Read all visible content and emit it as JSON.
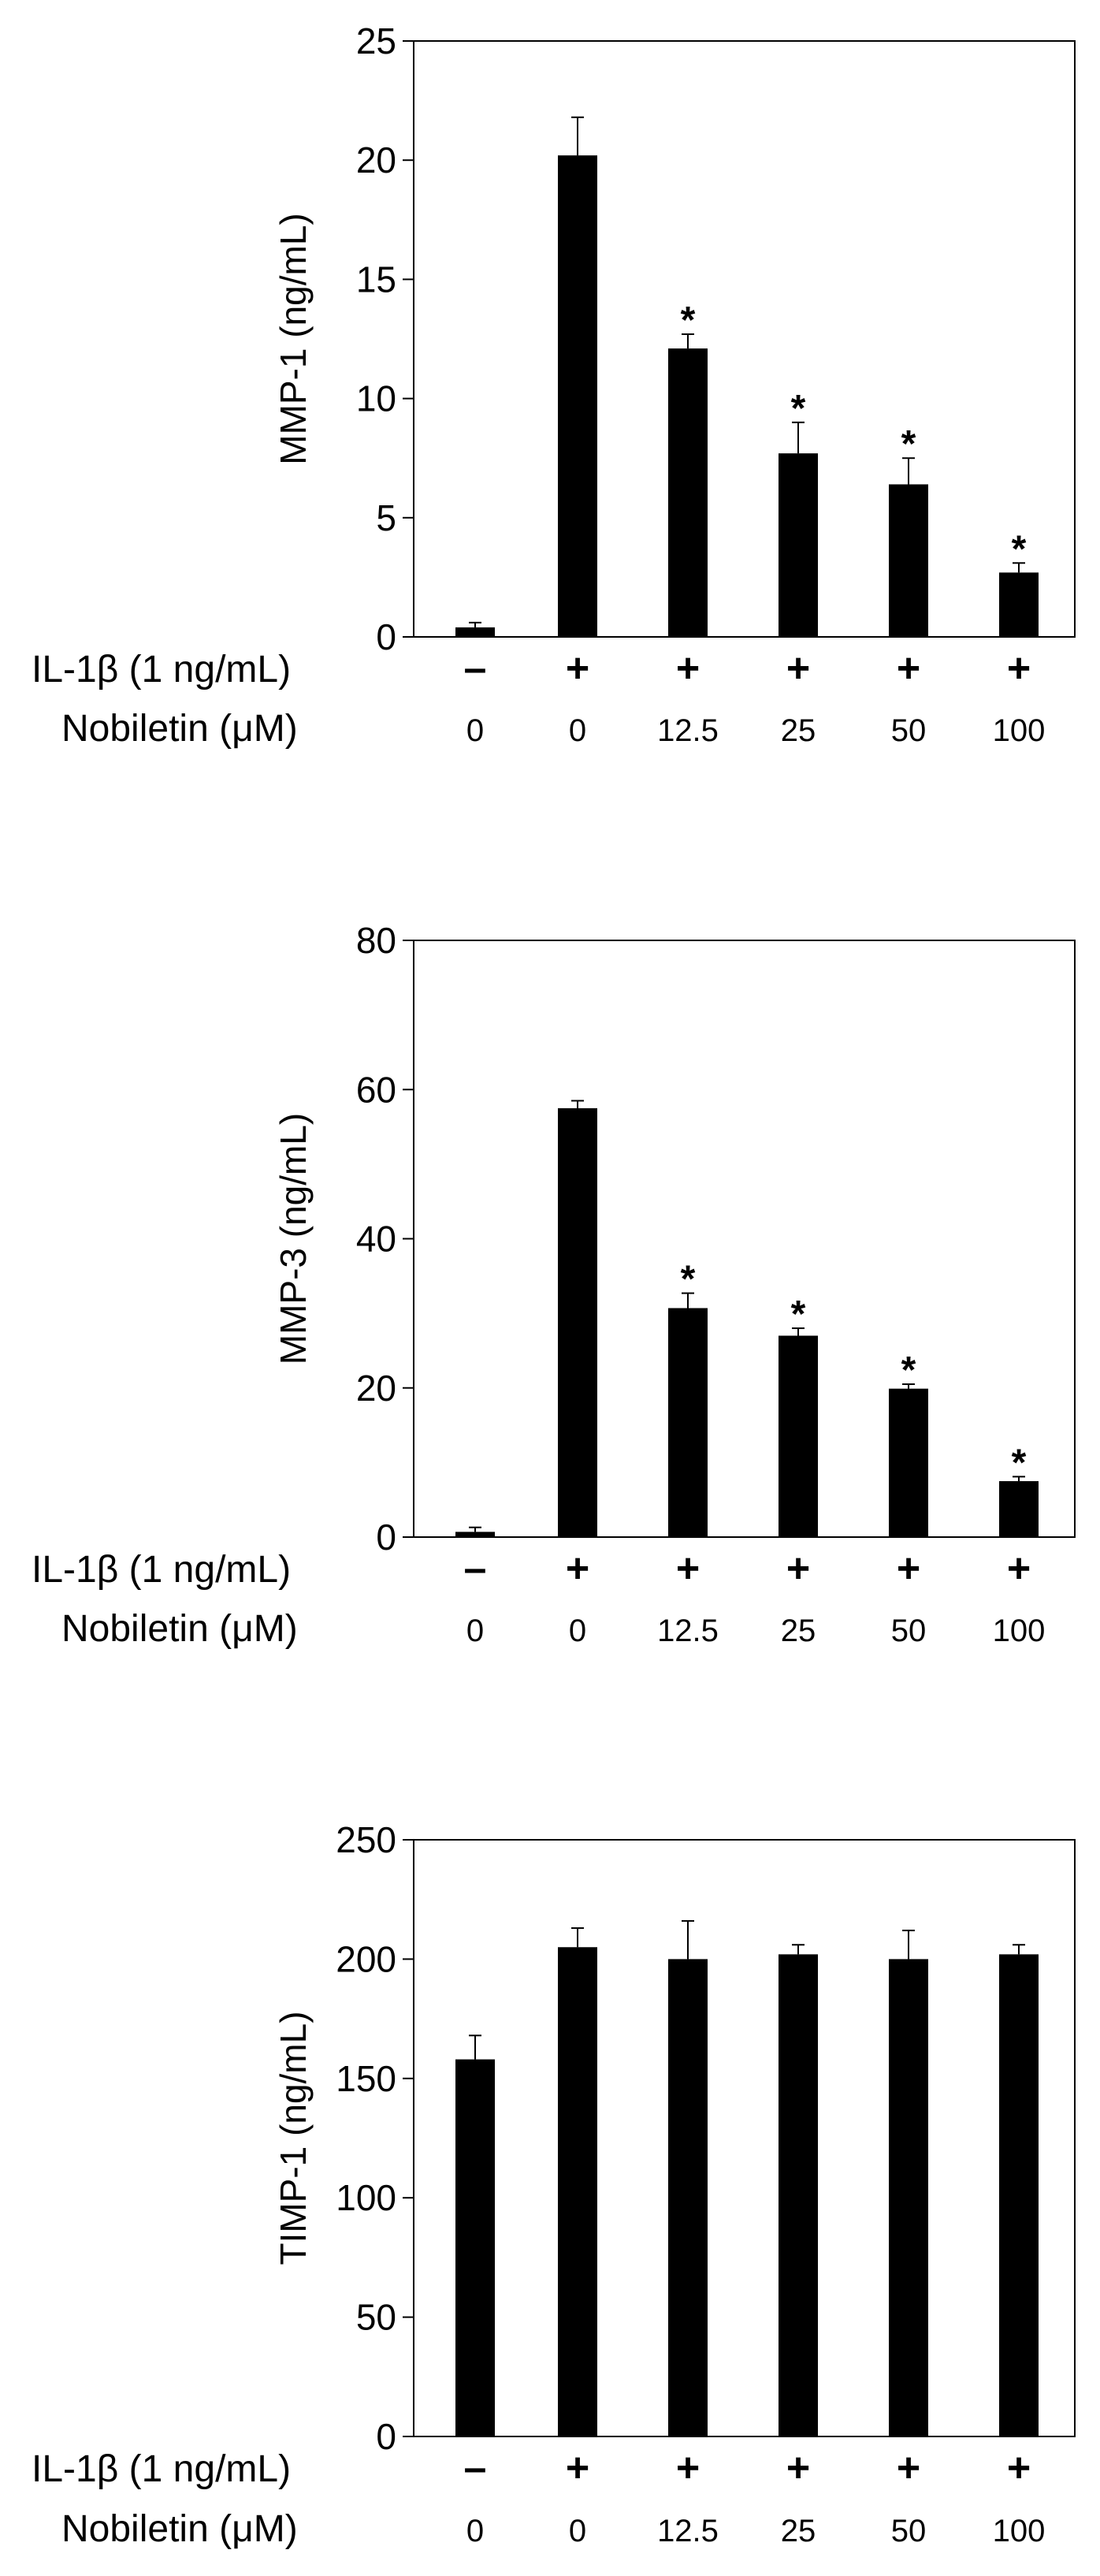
{
  "row_labels": {
    "il1b": "IL-1β (1 ng/mL)",
    "nobiletin": "Nobiletin (μM)"
  },
  "il1b_values": [
    "–",
    "+",
    "+",
    "+",
    "+",
    "+"
  ],
  "nobiletin_values": [
    "0",
    "0",
    "12.5",
    "25",
    "50",
    "100"
  ],
  "colors": {
    "bar": "#000000",
    "axis": "#000000",
    "background": "#ffffff"
  },
  "chart_data": [
    {
      "type": "bar",
      "ylabel": "MMP-1 (ng/mL)",
      "ylim": [
        0,
        25
      ],
      "yticks": [
        0,
        5,
        10,
        15,
        20,
        25
      ],
      "categories": [
        "0",
        "0",
        "12.5",
        "25",
        "50",
        "100"
      ],
      "values": [
        0.4,
        20.2,
        12.1,
        7.7,
        6.4,
        2.7
      ],
      "errors": [
        0.2,
        1.6,
        0.6,
        1.3,
        1.1,
        0.4
      ],
      "significance": [
        "",
        "",
        "*",
        "*",
        "*",
        "*"
      ],
      "grid": false
    },
    {
      "type": "bar",
      "ylabel": "MMP-3 (ng/mL)",
      "ylim": [
        0,
        80
      ],
      "yticks": [
        0,
        20,
        40,
        60,
        80
      ],
      "categories": [
        "0",
        "0",
        "12.5",
        "25",
        "50",
        "100"
      ],
      "values": [
        0.7,
        57.5,
        30.7,
        27.0,
        19.9,
        7.5
      ],
      "errors": [
        0.6,
        1.0,
        2.0,
        1.0,
        0.6,
        0.6
      ],
      "significance": [
        "",
        "",
        "*",
        "*",
        "*",
        "*"
      ],
      "grid": false
    },
    {
      "type": "bar",
      "ylabel": "TIMP-1 (ng/mL)",
      "ylim": [
        0,
        250
      ],
      "yticks": [
        0,
        50,
        100,
        150,
        200,
        250
      ],
      "categories": [
        "0",
        "0",
        "12.5",
        "25",
        "50",
        "100"
      ],
      "values": [
        158,
        205,
        200,
        202,
        200,
        202
      ],
      "errors": [
        10,
        8,
        16,
        4,
        12,
        4
      ],
      "significance": [
        "",
        "",
        "",
        "",
        "",
        ""
      ],
      "grid": false
    }
  ]
}
